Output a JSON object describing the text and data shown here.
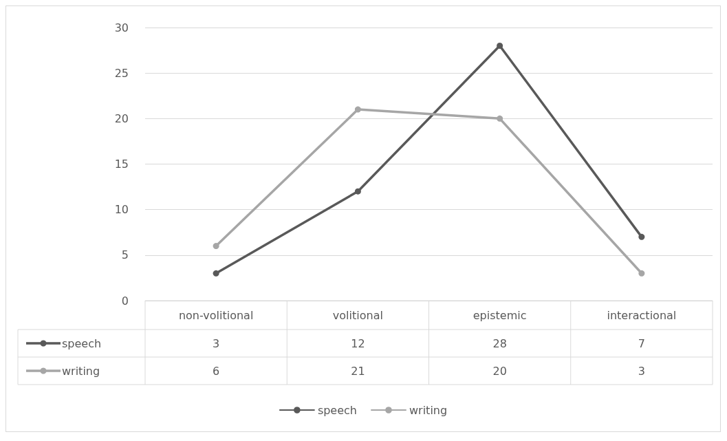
{
  "chart_data": {
    "type": "line",
    "categories": [
      "non-volitional",
      "volitional",
      "epistemic",
      "interactional"
    ],
    "series": [
      {
        "name": "speech",
        "color": "#595959",
        "values": [
          3,
          12,
          28,
          7
        ]
      },
      {
        "name": "writing",
        "color": "#a6a6a6",
        "values": [
          6,
          21,
          20,
          3
        ]
      }
    ],
    "ylim": [
      0,
      30
    ],
    "yticks": [
      0,
      5,
      10,
      15,
      20,
      25,
      30
    ],
    "grid": "y",
    "legend": "bottom",
    "marker": "circle",
    "line_style": "solid",
    "data_labels": true
  }
}
